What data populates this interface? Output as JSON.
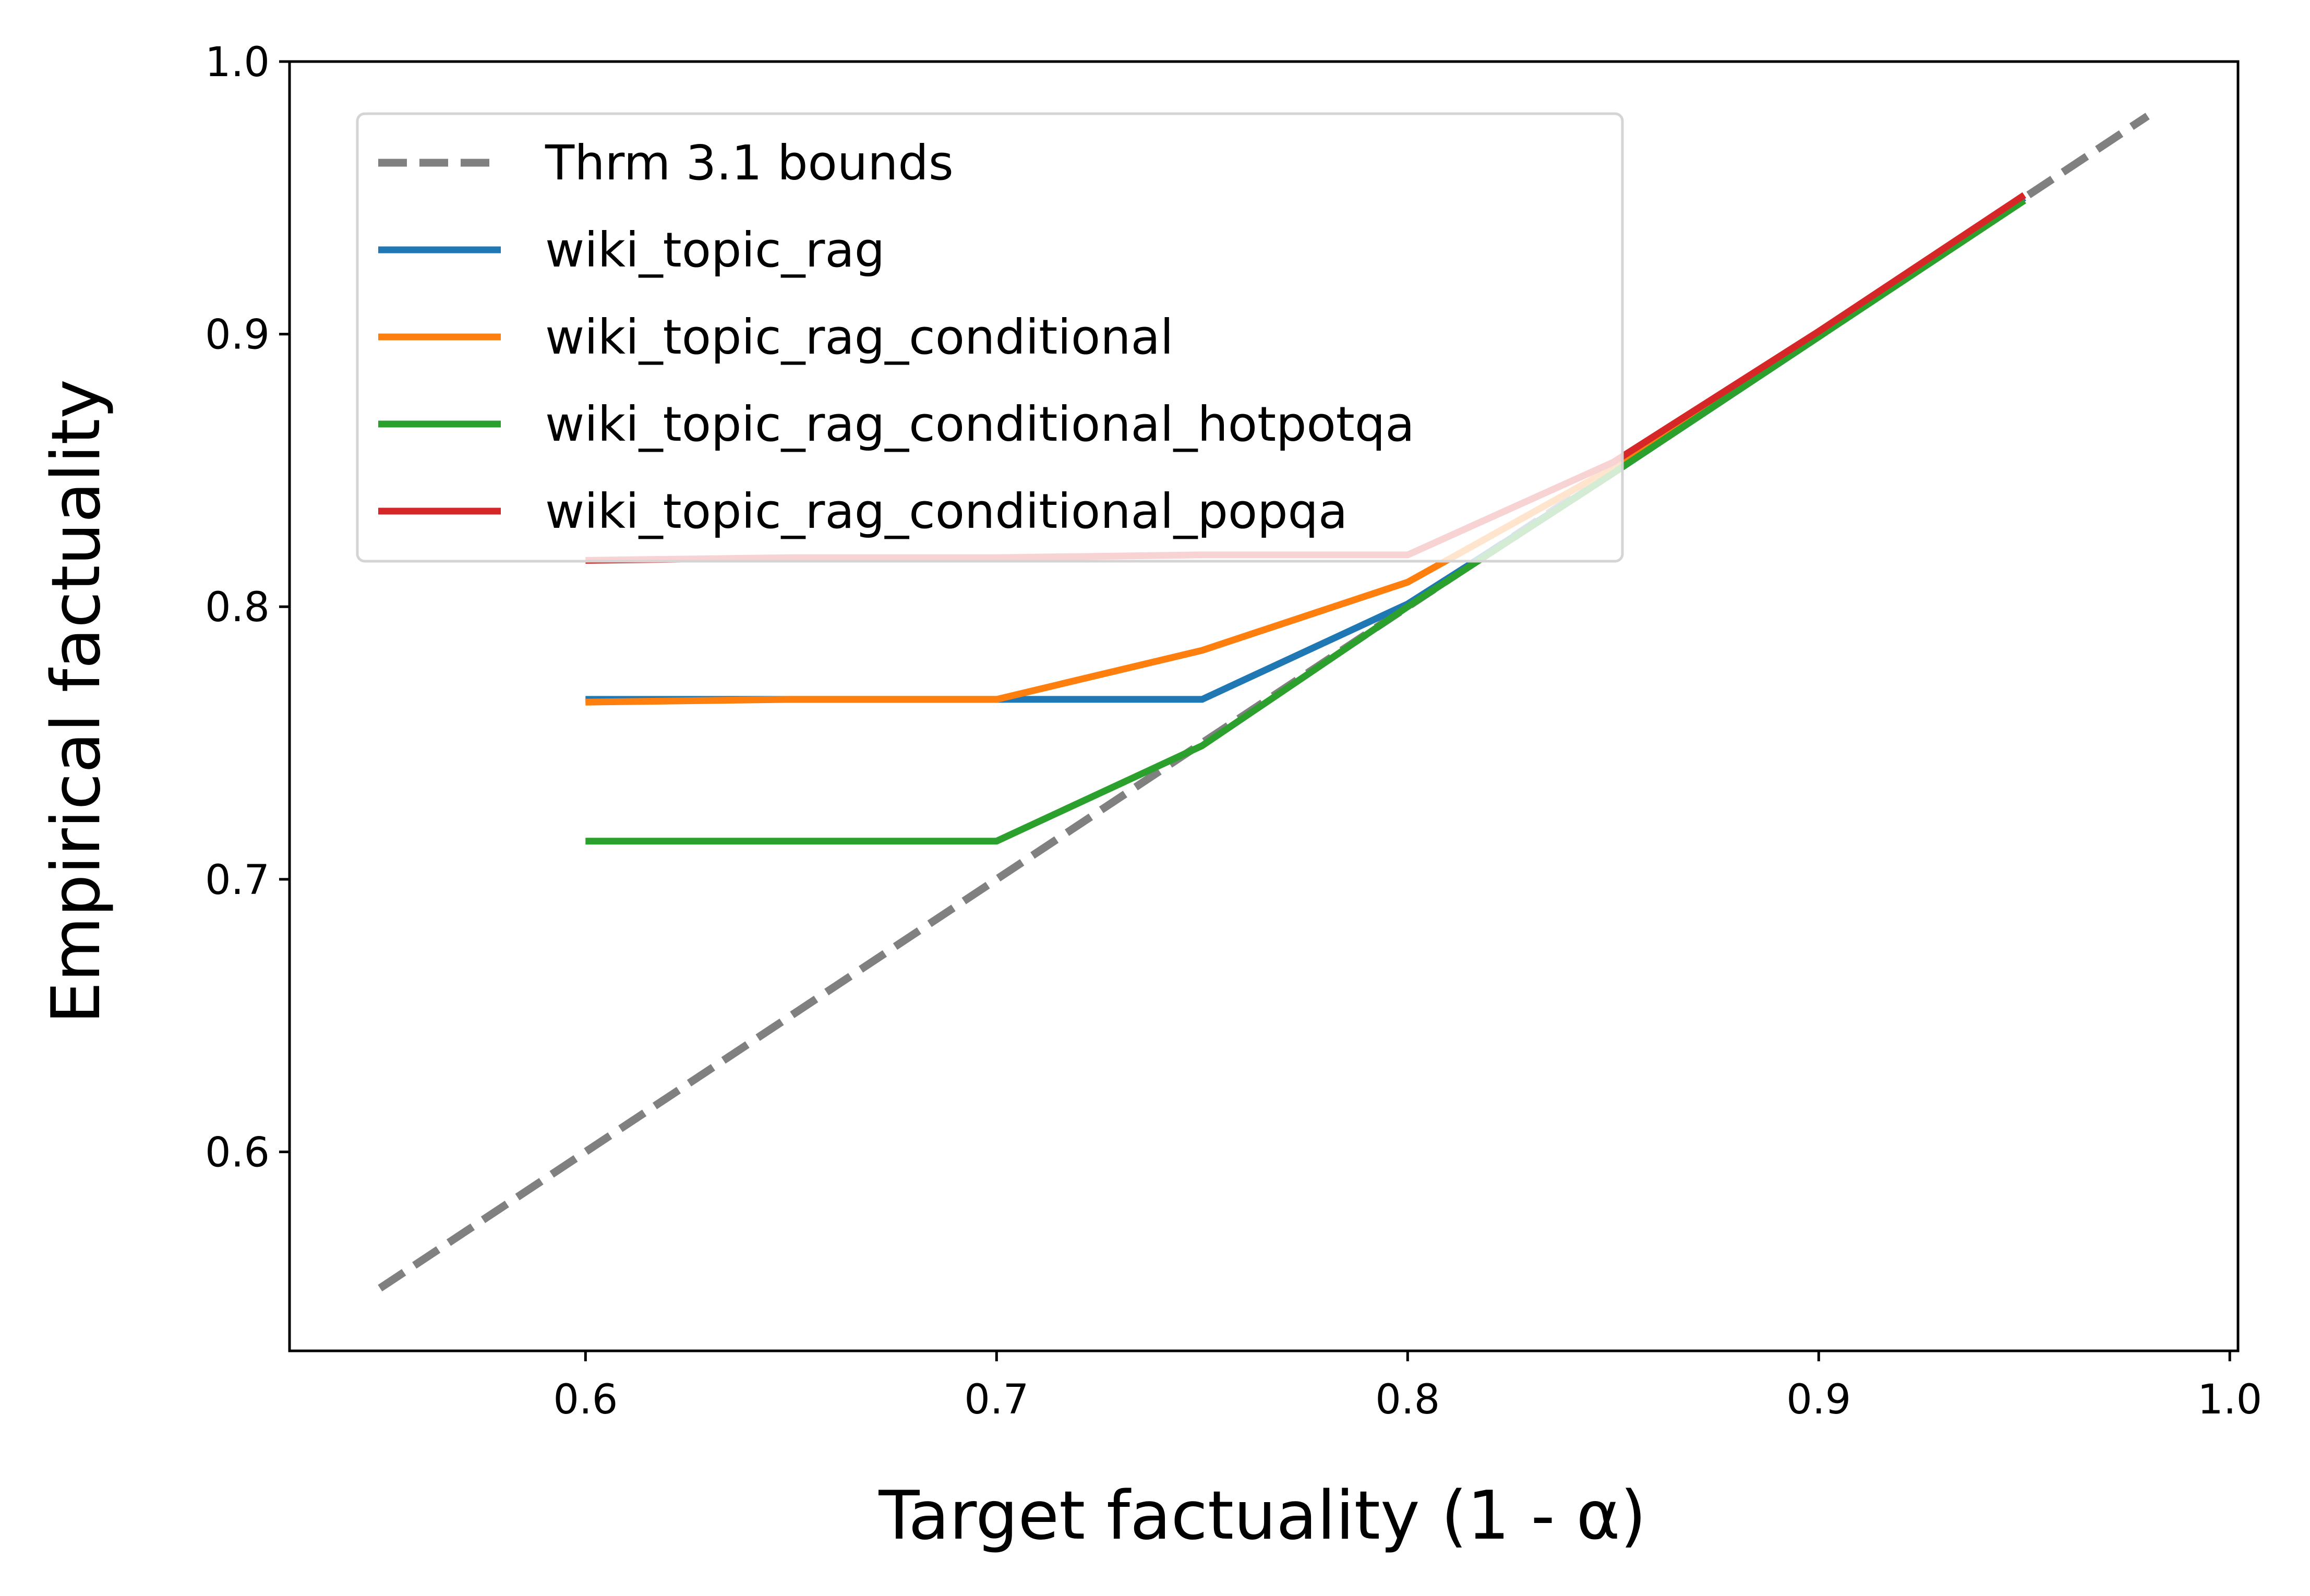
{
  "chart_data": {
    "type": "line",
    "xlabel": "Target factuality (1 - α)",
    "ylabel": "Empirical factuality",
    "xlim": [
      0.528,
      1.002
    ],
    "ylim": [
      0.527,
      1.0
    ],
    "xticks": [
      0.6,
      0.7,
      0.8,
      0.9,
      1.0
    ],
    "xtick_labels": [
      "0.6",
      "0.7",
      "0.8",
      "0.9",
      "1.0"
    ],
    "yticks": [
      0.6,
      0.7,
      0.8,
      0.9,
      1.0
    ],
    "ytick_labels": [
      "0.6",
      "0.7",
      "0.8",
      "0.9",
      "1.0"
    ],
    "grid": false,
    "legend_position": "upper-left",
    "series": [
      {
        "name": "Thrm 3.1 bounds",
        "color": "#808080",
        "style": "dashed",
        "x": [
          0.55,
          0.98
        ],
        "y": [
          0.55,
          0.98
        ]
      },
      {
        "name": "wiki_topic_rag",
        "color": "#1f77b4",
        "style": "solid",
        "x": [
          0.6,
          0.65,
          0.7,
          0.75,
          0.8,
          0.85,
          0.9,
          0.95
        ],
        "y": [
          0.766,
          0.766,
          0.766,
          0.766,
          0.801,
          0.849,
          0.899,
          0.95
        ]
      },
      {
        "name": "wiki_topic_rag_conditional",
        "color": "#ff7f0e",
        "style": "solid",
        "x": [
          0.6,
          0.65,
          0.7,
          0.75,
          0.8,
          0.85,
          0.9,
          0.95
        ],
        "y": [
          0.765,
          0.766,
          0.766,
          0.784,
          0.809,
          0.851,
          0.9,
          0.951
        ]
      },
      {
        "name": "wiki_topic_rag_conditional_hotpotqa",
        "color": "#2ca02c",
        "style": "solid",
        "x": [
          0.6,
          0.65,
          0.7,
          0.75,
          0.8,
          0.85,
          0.9,
          0.95
        ],
        "y": [
          0.714,
          0.714,
          0.714,
          0.749,
          0.8,
          0.849,
          0.899,
          0.949
        ]
      },
      {
        "name": "wiki_topic_rag_conditional_popqa",
        "color": "#d62728",
        "style": "solid",
        "x": [
          0.6,
          0.65,
          0.7,
          0.75,
          0.8,
          0.85,
          0.9,
          0.95
        ],
        "y": [
          0.817,
          0.818,
          0.818,
          0.819,
          0.819,
          0.853,
          0.901,
          0.951
        ]
      }
    ]
  }
}
